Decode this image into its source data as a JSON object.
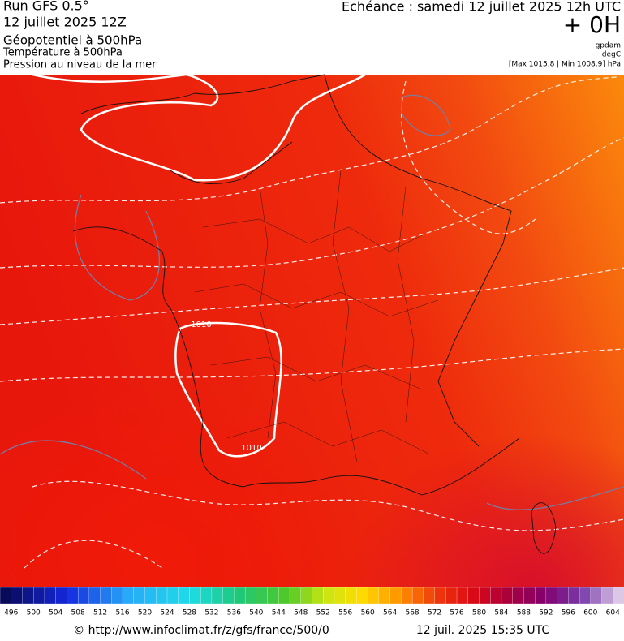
{
  "header": {
    "run": "Run GFS 0.5°",
    "date": "12 juillet 2025 12Z",
    "field": "Géopotentiel à 500hPa",
    "field2": "Température à 500hPa",
    "field3": "Pression au niveau de la mer",
    "echeance": "Echéance : samedi 12 juillet 2025 12h UTC",
    "offset": "+ 0H",
    "unit1": "gpdam",
    "unit2": "degC",
    "range": "[Max 1015.8 | Min 1008.9] hPa"
  },
  "map": {
    "contour_labels": [
      "1010",
      "1010"
    ]
  },
  "legend": {
    "labels": [
      496,
      500,
      504,
      508,
      512,
      516,
      520,
      524,
      528,
      532,
      536,
      540,
      544,
      548,
      552,
      556,
      560,
      564,
      568,
      572,
      576,
      580,
      584,
      588,
      592,
      596,
      600,
      604
    ]
  },
  "footer": {
    "url": "© http://www.infoclimat.fr/z/gfs/france/500/0",
    "timestamp": "12 juil. 2025 15:35 UTC"
  }
}
